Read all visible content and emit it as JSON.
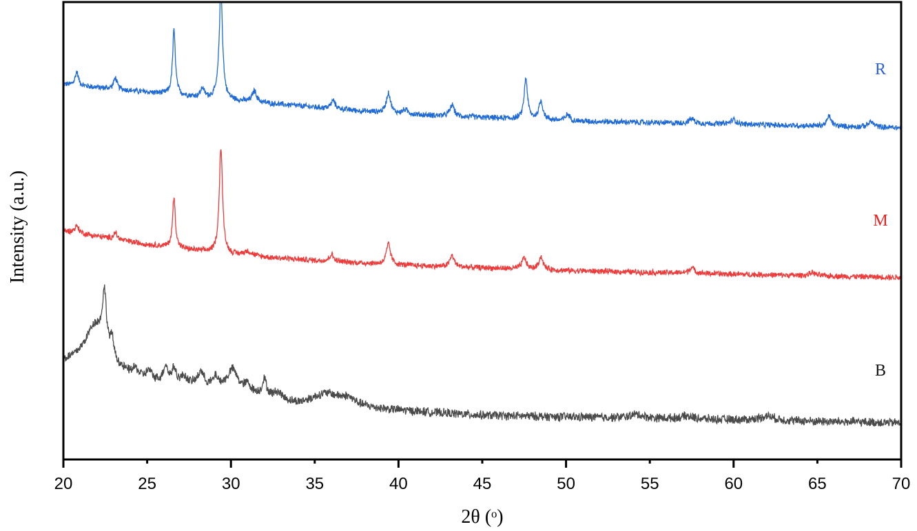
{
  "chart_data": {
    "type": "line",
    "title": "",
    "xlabel": "2θ (ᵒ)",
    "ylabel": "Intensity (a.u.)",
    "xlim": [
      20,
      70
    ],
    "ylim": [
      0,
      100
    ],
    "xticks": [
      "20",
      "25",
      "30",
      "35",
      "40",
      "45",
      "50",
      "55",
      "60",
      "65",
      "70"
    ],
    "grid": false,
    "legend": "inline labels at right end of each curve",
    "series": [
      {
        "name": "R",
        "color": "#1f6ad6",
        "label_color": "#2b5fe0",
        "noise": 0.7,
        "baseline": [
          [
            20,
            82
          ],
          [
            25,
            80.3
          ],
          [
            30,
            78.5
          ],
          [
            35,
            77
          ],
          [
            40,
            75.5
          ],
          [
            50,
            74
          ],
          [
            60,
            73.3
          ],
          [
            70,
            72.5
          ]
        ],
        "peaks": [
          [
            20.8,
            3,
            0.12
          ],
          [
            23.1,
            2.5,
            0.12
          ],
          [
            26.6,
            14,
            0.1
          ],
          [
            28.3,
            2,
            0.12
          ],
          [
            29.4,
            24,
            0.12
          ],
          [
            31.4,
            2.5,
            0.15
          ],
          [
            36.1,
            1.8,
            0.15
          ],
          [
            39.4,
            4.5,
            0.15
          ],
          [
            40.4,
            1,
            0.2
          ],
          [
            43.2,
            2.5,
            0.15
          ],
          [
            47.6,
            9,
            0.12
          ],
          [
            48.5,
            4,
            0.15
          ],
          [
            50.1,
            1.5,
            0.15
          ],
          [
            57.5,
            1,
            0.2
          ],
          [
            60.0,
            1,
            0.2
          ],
          [
            65.7,
            2.2,
            0.15
          ],
          [
            68.2,
            1.2,
            0.2
          ]
        ]
      },
      {
        "name": "M",
        "color": "#ef3a3a",
        "label_color": "#e82020",
        "noise": 0.7,
        "baseline": [
          [
            20,
            50
          ],
          [
            25,
            47
          ],
          [
            30,
            44.7
          ],
          [
            35,
            43.5
          ],
          [
            40,
            42.5
          ],
          [
            50,
            41.3
          ],
          [
            60,
            40.5
          ],
          [
            70,
            39.8
          ]
        ],
        "peaks": [
          [
            20.8,
            1.5,
            0.15
          ],
          [
            23.1,
            1.5,
            0.12
          ],
          [
            26.6,
            11,
            0.1
          ],
          [
            29.4,
            23,
            0.12
          ],
          [
            31,
            1,
            0.3
          ],
          [
            36.0,
            1.5,
            0.15
          ],
          [
            39.4,
            4.5,
            0.15
          ],
          [
            43.2,
            2.5,
            0.15
          ],
          [
            47.5,
            2.5,
            0.15
          ],
          [
            48.5,
            2.8,
            0.15
          ],
          [
            57.5,
            1.2,
            0.2
          ],
          [
            64.7,
            0.7,
            0.2
          ]
        ]
      },
      {
        "name": "B",
        "color": "#4a4a4a",
        "label_color": "#111111",
        "noise": 1.1,
        "baseline": [
          [
            20,
            21
          ],
          [
            21,
            21
          ],
          [
            23,
            19
          ],
          [
            25,
            17
          ],
          [
            30,
            15.5
          ],
          [
            34,
            11.5
          ],
          [
            38,
            11
          ],
          [
            45,
            9.6
          ],
          [
            70,
            8
          ]
        ],
        "peaks": [
          [
            21.9,
            9,
            0.7
          ],
          [
            22.45,
            12,
            0.15
          ],
          [
            22.9,
            4,
            0.15
          ],
          [
            24.3,
            1.5,
            0.2
          ],
          [
            25.1,
            2,
            0.2
          ],
          [
            26.1,
            3.5,
            0.15
          ],
          [
            26.6,
            3,
            0.15
          ],
          [
            27.2,
            1.5,
            0.2
          ],
          [
            28.2,
            3,
            0.2
          ],
          [
            29.1,
            2,
            0.15
          ],
          [
            30.1,
            4,
            0.35
          ],
          [
            31,
            1.5,
            0.2
          ],
          [
            32,
            3.5,
            0.15
          ],
          [
            32.8,
            1.5,
            0.3
          ],
          [
            35.7,
            3,
            1.2
          ],
          [
            37,
            1.3,
            0.5
          ],
          [
            54.2,
            0.8,
            0.5
          ],
          [
            57.2,
            0.6,
            0.5
          ],
          [
            62,
            1,
            0.5
          ]
        ]
      }
    ]
  }
}
